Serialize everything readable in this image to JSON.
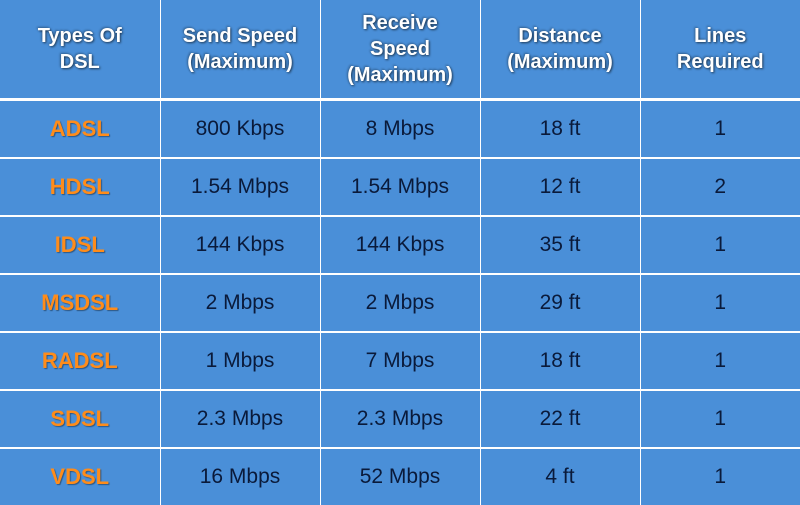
{
  "table": {
    "background_color": "#4a8fd8",
    "border_color": "#ffffff",
    "header_text_color": "#ffffff",
    "type_text_color": "#ff8c1a",
    "body_text_color": "#0a1a3a",
    "header_fontsize": 20,
    "body_fontsize": 21,
    "type_fontsize": 22,
    "columns": [
      "Types Of\nDSL",
      "Send Speed\n(Maximum)",
      "Receive\nSpeed\n(Maximum)",
      "Distance\n(Maximum)",
      "Lines\nRequired"
    ],
    "rows": [
      {
        "type": "ADSL",
        "send": "800 Kbps",
        "receive": "8 Mbps",
        "distance": "18 ft",
        "lines": "1"
      },
      {
        "type": "HDSL",
        "send": "1.54 Mbps",
        "receive": "1.54 Mbps",
        "distance": "12 ft",
        "lines": "2"
      },
      {
        "type": "IDSL",
        "send": "144 Kbps",
        "receive": "144 Kbps",
        "distance": "35 ft",
        "lines": "1"
      },
      {
        "type": "MSDSL",
        "send": "2 Mbps",
        "receive": "2 Mbps",
        "distance": "29 ft",
        "lines": "1"
      },
      {
        "type": "RADSL",
        "send": "1 Mbps",
        "receive": "7 Mbps",
        "distance": "18 ft",
        "lines": "1"
      },
      {
        "type": "SDSL",
        "send": "2.3 Mbps",
        "receive": "2.3 Mbps",
        "distance": "22 ft",
        "lines": "1"
      },
      {
        "type": "VDSL",
        "send": "16 Mbps",
        "receive": "52 Mbps",
        "distance": "4 ft",
        "lines": "1"
      }
    ]
  }
}
